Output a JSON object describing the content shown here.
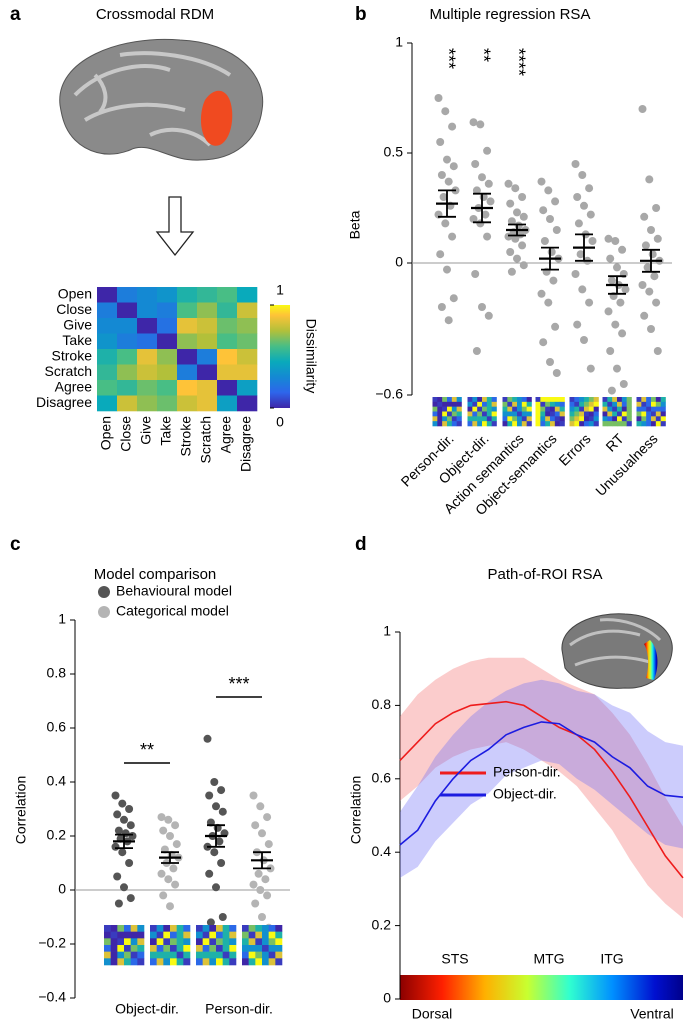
{
  "chart_data": [
    {
      "type": "heatmap",
      "panel": "a",
      "title": "Crossmodal RDM",
      "labels": [
        "Open",
        "Close",
        "Give",
        "Take",
        "Stroke",
        "Scratch",
        "Agree",
        "Disagree"
      ],
      "values": [
        [
          0.0,
          0.25,
          0.3,
          0.35,
          0.5,
          0.55,
          0.6,
          0.45
        ],
        [
          0.25,
          0.0,
          0.3,
          0.25,
          0.6,
          0.7,
          0.55,
          0.8
        ],
        [
          0.3,
          0.3,
          0.0,
          0.2,
          0.85,
          0.8,
          0.65,
          0.7
        ],
        [
          0.35,
          0.25,
          0.2,
          0.0,
          0.7,
          0.75,
          0.6,
          0.65
        ],
        [
          0.5,
          0.6,
          0.85,
          0.7,
          0.0,
          0.25,
          0.9,
          0.8
        ],
        [
          0.55,
          0.7,
          0.8,
          0.75,
          0.25,
          0.0,
          0.85,
          0.85
        ],
        [
          0.6,
          0.55,
          0.65,
          0.6,
          0.9,
          0.85,
          0.0,
          0.4
        ],
        [
          0.45,
          0.8,
          0.7,
          0.65,
          0.8,
          0.85,
          0.4,
          0.0
        ]
      ],
      "colorbar_label": "Dissimilarity",
      "colorbar_ticks": [
        0,
        1
      ]
    },
    {
      "type": "strip",
      "panel": "b",
      "title": "Multiple regression RSA",
      "y_label": "Beta",
      "categories": [
        "Person-dir.",
        "Object-dir.",
        "Action semantics",
        "Object-semantics",
        "Errors",
        "RT",
        "Unusualness"
      ],
      "annotations": [
        "***",
        "**",
        "****",
        null,
        null,
        null,
        null
      ],
      "series": [
        {
          "color": "#a8a8a8",
          "values": [
            [
              0.75,
              0.69,
              0.62,
              0.55,
              0.47,
              0.44,
              0.4,
              0.37,
              0.33,
              0.3,
              0.26,
              0.22,
              0.18,
              0.12,
              0.04,
              -0.03,
              -0.16,
              -0.2,
              -0.26
            ],
            [
              0.64,
              0.63,
              0.51,
              0.45,
              0.39,
              0.36,
              0.33,
              0.3,
              0.28,
              0.25,
              0.22,
              0.2,
              0.18,
              0.12,
              -0.05,
              -0.2,
              -0.24,
              -0.4
            ],
            [
              0.36,
              0.34,
              0.3,
              0.27,
              0.23,
              0.21,
              0.19,
              0.17,
              0.15,
              0.14,
              0.13,
              0.12,
              0.11,
              0.08,
              0.05,
              0.02,
              -0.01,
              -0.04
            ],
            [
              0.37,
              0.33,
              0.28,
              0.24,
              0.2,
              0.15,
              0.1,
              0.05,
              0.02,
              -0.04,
              -0.08,
              -0.14,
              -0.18,
              -0.29,
              -0.36,
              -0.45,
              -0.5
            ],
            [
              0.45,
              0.4,
              0.34,
              0.3,
              0.26,
              0.22,
              0.18,
              0.13,
              0.1,
              0.04,
              0.01,
              -0.05,
              -0.12,
              -0.18,
              -0.28,
              -0.35,
              -0.48
            ],
            [
              0.11,
              0.1,
              0.06,
              0.02,
              -0.02,
              -0.05,
              -0.08,
              -0.1,
              -0.12,
              -0.15,
              -0.18,
              -0.22,
              -0.28,
              -0.32,
              -0.4,
              -0.48,
              -0.55,
              -0.58
            ],
            [
              0.7,
              0.38,
              0.25,
              0.21,
              0.15,
              0.11,
              0.08,
              0.04,
              0.01,
              -0.02,
              -0.06,
              -0.1,
              -0.13,
              -0.18,
              -0.24,
              -0.3,
              -0.4
            ]
          ],
          "means": [
            0.27,
            0.25,
            0.15,
            0.02,
            0.07,
            -0.1,
            0.01
          ],
          "errors": [
            0.06,
            0.065,
            0.025,
            0.05,
            0.06,
            0.04,
            0.05
          ]
        }
      ],
      "ylim": [
        -0.6,
        1
      ],
      "yticks": [
        {
          "value": -0.6,
          "label": "−0.6"
        },
        0,
        0.5,
        1
      ]
    },
    {
      "type": "strip",
      "panel": "c",
      "title": "Model comparison",
      "y_label": "Correlation",
      "categories": [
        "Object-dir.",
        "Person-dir."
      ],
      "annotations": [
        "**",
        "***"
      ],
      "series": [
        {
          "name": "Behavioural model",
          "color": "#555555",
          "values": [
            [
              0.35,
              0.32,
              0.3,
              0.28,
              0.26,
              0.24,
              0.22,
              0.21,
              0.2,
              0.19,
              0.18,
              0.16,
              0.14,
              0.1,
              0.05,
              0.01,
              -0.03,
              -0.05
            ],
            [
              0.56,
              0.4,
              0.37,
              0.35,
              0.31,
              0.29,
              0.25,
              0.23,
              0.21,
              0.2,
              0.18,
              0.16,
              0.14,
              0.1,
              0.06,
              0.01,
              -0.1,
              -0.12
            ]
          ],
          "means": [
            0.18,
            0.2
          ],
          "errors": [
            0.025,
            0.04
          ]
        },
        {
          "name": "Categorical model",
          "color": "#b4b4b4",
          "values": [
            [
              0.27,
              0.26,
              0.24,
              0.22,
              0.2,
              0.17,
              0.15,
              0.13,
              0.12,
              0.1,
              0.08,
              0.06,
              0.04,
              0.02,
              -0.02,
              -0.06
            ],
            [
              0.35,
              0.31,
              0.27,
              0.24,
              0.21,
              0.17,
              0.14,
              0.11,
              0.08,
              0.06,
              0.04,
              0.02,
              0.0,
              -0.02,
              -0.05,
              -0.1,
              -0.14,
              -0.19
            ]
          ],
          "means": [
            0.12,
            0.11
          ],
          "errors": [
            0.02,
            0.03
          ]
        }
      ],
      "ylim": [
        -0.4,
        1
      ],
      "yticks": [
        {
          "value": -0.4,
          "label": "−0.4"
        },
        {
          "value": -0.2,
          "label": "−0.2"
        },
        0,
        0.2,
        0.4,
        0.6,
        0.8,
        1
      ]
    },
    {
      "type": "line",
      "panel": "d",
      "title": "Path-of-ROI RSA",
      "y_label": "Correlation",
      "x": [
        0,
        1,
        2,
        3,
        4,
        5,
        6,
        7,
        8,
        9,
        10,
        11,
        12,
        13,
        14,
        15,
        16
      ],
      "xlim": [
        0,
        16
      ],
      "series": [
        {
          "name": "Person-dir.",
          "color": "#ee1c1c",
          "values": [
            0.65,
            0.7,
            0.75,
            0.78,
            0.8,
            0.805,
            0.81,
            0.8,
            0.77,
            0.74,
            0.72,
            0.68,
            0.62,
            0.55,
            0.47,
            0.39,
            0.33
          ],
          "lower": [
            0.54,
            0.58,
            0.63,
            0.66,
            0.68,
            0.69,
            0.7,
            0.68,
            0.65,
            0.62,
            0.58,
            0.52,
            0.46,
            0.38,
            0.31,
            0.26,
            0.22
          ],
          "upper": [
            0.77,
            0.83,
            0.87,
            0.9,
            0.92,
            0.93,
            0.93,
            0.93,
            0.9,
            0.87,
            0.85,
            0.83,
            0.78,
            0.72,
            0.64,
            0.55,
            0.47
          ]
        },
        {
          "name": "Object-dir.",
          "color": "#1c1ce0",
          "values": [
            0.42,
            0.46,
            0.54,
            0.6,
            0.65,
            0.68,
            0.72,
            0.74,
            0.755,
            0.75,
            0.72,
            0.7,
            0.66,
            0.63,
            0.58,
            0.555,
            0.55
          ],
          "lower": [
            0.33,
            0.36,
            0.43,
            0.48,
            0.53,
            0.56,
            0.61,
            0.63,
            0.65,
            0.64,
            0.6,
            0.57,
            0.53,
            0.49,
            0.45,
            0.42,
            0.41
          ],
          "upper": [
            0.51,
            0.58,
            0.66,
            0.72,
            0.77,
            0.81,
            0.84,
            0.86,
            0.87,
            0.86,
            0.84,
            0.83,
            0.8,
            0.78,
            0.73,
            0.7,
            0.69
          ]
        }
      ],
      "ylim": [
        0,
        1
      ],
      "yticks": [
        0,
        0.2,
        0.4,
        0.6,
        0.8,
        1
      ],
      "regions": [
        "STS",
        "MTG",
        "ITG"
      ],
      "start_label": "Dorsal",
      "end_label": "Ventral"
    }
  ]
}
